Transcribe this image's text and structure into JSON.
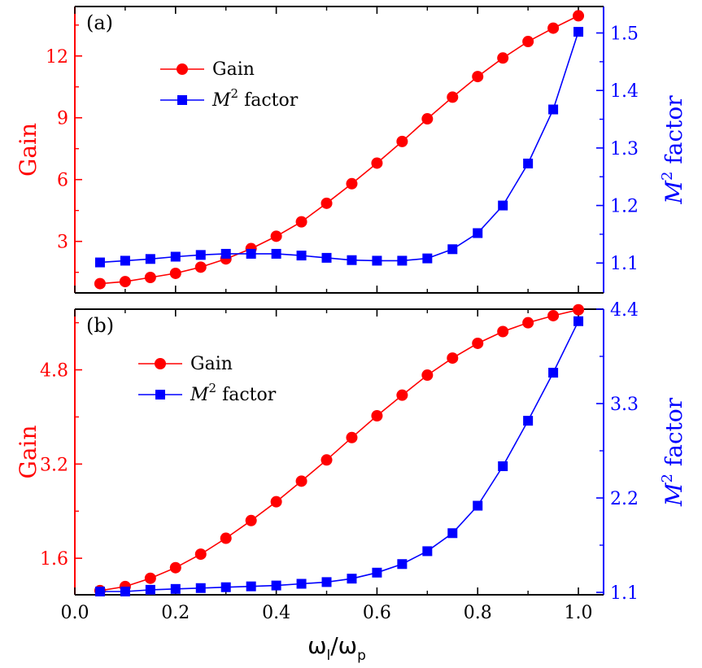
{
  "x_axis": {
    "label_main": "ω",
    "label_sub1": "l",
    "label_slash": "/ω",
    "label_sub2": "p",
    "ticks": [
      0.0,
      0.2,
      0.4,
      0.6,
      0.8,
      1.0
    ],
    "tick_labels": [
      "0.0",
      "0.2",
      "0.4",
      "0.6",
      "0.8",
      "1.0"
    ]
  },
  "colors": {
    "gain": "#ff0000",
    "m2": "#0000ff",
    "axis": "#000000"
  },
  "chart_data": [
    {
      "type": "line",
      "panel_label": "(a)",
      "x": [
        0.05,
        0.1,
        0.15,
        0.2,
        0.25,
        0.3,
        0.35,
        0.4,
        0.45,
        0.5,
        0.55,
        0.6,
        0.65,
        0.7,
        0.75,
        0.8,
        0.85,
        0.9,
        0.95,
        1.0
      ],
      "xlim": [
        0.0,
        1.05
      ],
      "left_axis": {
        "label": "Gain",
        "ylim": [
          0.5,
          14.4
        ],
        "ticks": [
          3,
          6,
          9,
          12
        ],
        "tick_labels": [
          "3",
          "6",
          "9",
          "12"
        ]
      },
      "right_axis": {
        "label_base": "M",
        "label_sup": "2",
        "label_rest": " factor",
        "ylim": [
          1.048,
          1.546
        ],
        "ticks": [
          1.1,
          1.2,
          1.3,
          1.4,
          1.5
        ],
        "tick_labels": [
          "1.1",
          "1.2",
          "1.3",
          "1.4",
          "1.5"
        ]
      },
      "series": [
        {
          "name": "Gain",
          "axis": "left",
          "marker": "circle",
          "values": [
            0.95,
            1.05,
            1.25,
            1.45,
            1.75,
            2.15,
            2.65,
            3.25,
            3.95,
            4.85,
            5.8,
            6.8,
            7.85,
            8.95,
            10.0,
            11.0,
            11.9,
            12.7,
            13.35,
            13.95
          ]
        },
        {
          "name_base": "M",
          "name_sup": "2",
          "name_rest": " factor",
          "axis": "right",
          "marker": "square",
          "values": [
            1.101,
            1.104,
            1.107,
            1.111,
            1.114,
            1.116,
            1.116,
            1.116,
            1.113,
            1.109,
            1.105,
            1.104,
            1.104,
            1.108,
            1.124,
            1.152,
            1.2,
            1.273,
            1.367,
            1.502
          ]
        }
      ],
      "legend_position": "upper-left"
    },
    {
      "type": "line",
      "panel_label": "(b)",
      "x": [
        0.05,
        0.1,
        0.15,
        0.2,
        0.25,
        0.3,
        0.35,
        0.4,
        0.45,
        0.5,
        0.55,
        0.6,
        0.65,
        0.7,
        0.75,
        0.8,
        0.85,
        0.9,
        0.95,
        1.0
      ],
      "xlim": [
        0.0,
        1.05
      ],
      "left_axis": {
        "label": "Gain",
        "ylim": [
          0.98,
          5.83
        ],
        "ticks": [
          1.6,
          3.2,
          4.8
        ],
        "tick_labels": [
          "1.6",
          "3.2",
          "4.8"
        ]
      },
      "right_axis": {
        "label_base": "M",
        "label_sup": "2",
        "label_rest": " factor",
        "ylim": [
          1.072,
          4.4
        ],
        "ticks": [
          1.1,
          2.2,
          3.3,
          4.4
        ],
        "tick_labels": [
          "1.1",
          "2.2",
          "3.3",
          "4.4"
        ]
      },
      "series": [
        {
          "name": "Gain",
          "axis": "left",
          "marker": "circle",
          "values": [
            1.05,
            1.12,
            1.26,
            1.44,
            1.67,
            1.94,
            2.24,
            2.56,
            2.91,
            3.27,
            3.65,
            4.02,
            4.37,
            4.71,
            5.0,
            5.25,
            5.45,
            5.6,
            5.72,
            5.82
          ]
        },
        {
          "name_base": "M",
          "name_sup": "2",
          "name_rest": " factor",
          "axis": "right",
          "marker": "square",
          "values": [
            1.11,
            1.11,
            1.13,
            1.14,
            1.15,
            1.16,
            1.17,
            1.18,
            1.2,
            1.22,
            1.26,
            1.33,
            1.43,
            1.58,
            1.79,
            2.11,
            2.57,
            3.1,
            3.66,
            4.26
          ]
        }
      ],
      "legend_position": "upper-left"
    }
  ]
}
